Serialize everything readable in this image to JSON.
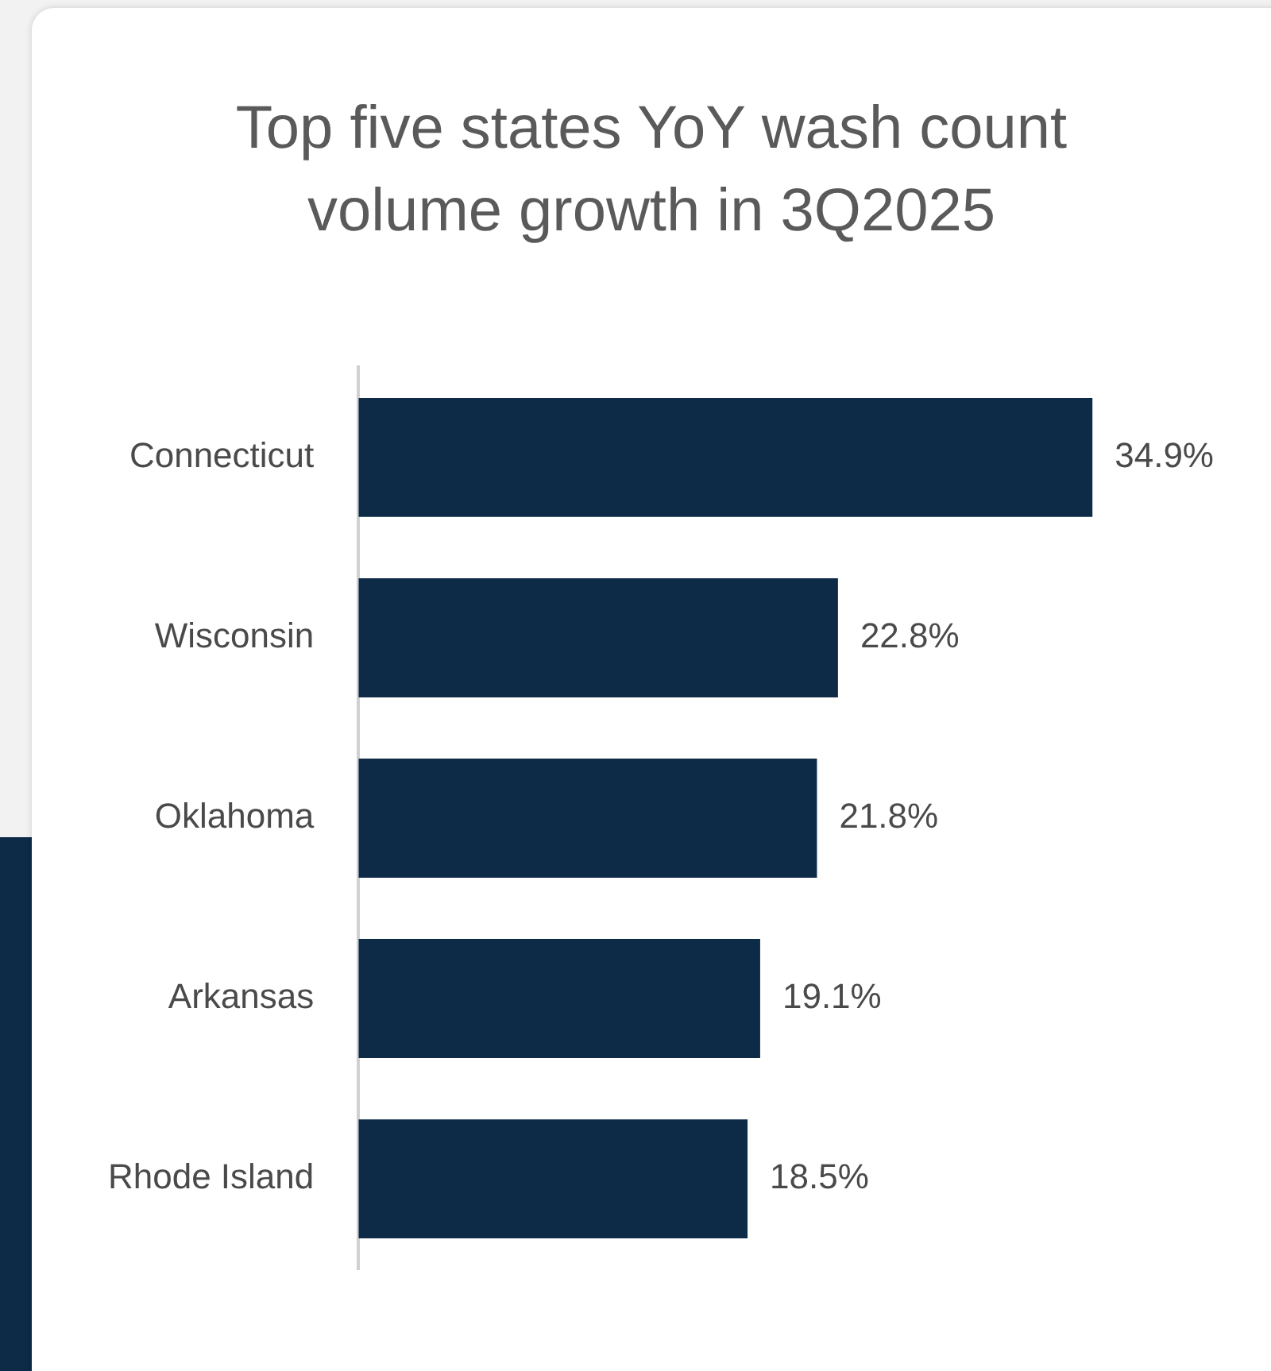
{
  "chart_data": {
    "type": "bar",
    "orientation": "horizontal",
    "title": "Top five states YoY wash count volume growth in 3Q2025",
    "categories": [
      "Connecticut",
      "Wisconsin",
      "Oklahoma",
      "Arkansas",
      "Rhode Island"
    ],
    "values": [
      34.9,
      22.8,
      21.8,
      19.1,
      18.5
    ],
    "value_labels": [
      "34.9%",
      "22.8%",
      "21.8%",
      "19.1%",
      "18.5%"
    ],
    "color": "#0d2a47"
  }
}
